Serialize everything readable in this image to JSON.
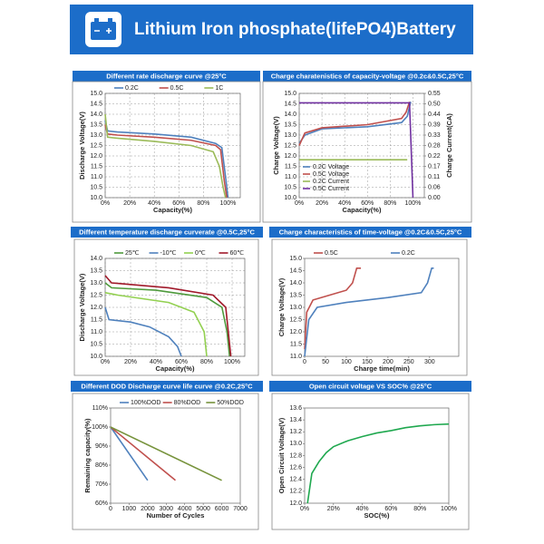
{
  "title": "Lithium Iron phosphate(lifePO4)Battery",
  "chart_data": [
    {
      "type": "line",
      "title": "Different rate discharge curve @25°C",
      "xlabel": "Capacity(%)",
      "ylabel": "Discharge Voltage(V)",
      "xlim": [
        0,
        110
      ],
      "ylim": [
        10,
        15
      ],
      "xticks": [
        {
          "value": 0,
          "label": "0%"
        },
        {
          "value": 20,
          "label": "20%"
        },
        {
          "value": 40,
          "label": "40%"
        },
        {
          "value": 60,
          "label": "60%"
        },
        {
          "value": 80,
          "label": "80%"
        },
        {
          "value": 100,
          "label": "100%"
        }
      ],
      "yticks": [
        {
          "value": 10,
          "label": "10.0"
        },
        10.5,
        {
          "value": 11,
          "label": "11.0"
        },
        11.5,
        {
          "value": 12,
          "label": "12.0"
        },
        12.5,
        {
          "value": 13,
          "label": "13.0"
        },
        13.5,
        {
          "value": 14,
          "label": "14.0"
        },
        14.5,
        {
          "value": 15,
          "label": "15.0"
        }
      ],
      "grid": true,
      "legend": "top",
      "series": [
        {
          "name": "0.2C",
          "color": "#4f81bd",
          "x": [
            0,
            2,
            10,
            40,
            70,
            90,
            95,
            98,
            100
          ],
          "values": [
            13.7,
            13.2,
            13.15,
            13.05,
            12.9,
            12.6,
            12.4,
            11,
            10
          ]
        },
        {
          "name": "0.5C",
          "color": "#c0504d",
          "x": [
            0,
            2,
            10,
            40,
            70,
            90,
            94,
            97,
            99
          ],
          "values": [
            13.5,
            13.05,
            13,
            12.9,
            12.75,
            12.5,
            12.3,
            10.8,
            10
          ]
        },
        {
          "name": "1C",
          "color": "#9bbb59",
          "x": [
            0,
            2,
            10,
            40,
            70,
            88,
            93,
            96,
            98
          ],
          "values": [
            14,
            12.9,
            12.85,
            12.7,
            12.5,
            12.2,
            11.5,
            10.5,
            10
          ]
        }
      ]
    },
    {
      "type": "line",
      "title": "Charge charatenistics of capacity-voltage @0.2c&0.5C,25°C",
      "xlabel": "Capacity(%)",
      "ylabel": "Charge Voltage(V)",
      "y2label": "Charge Current(CA)",
      "xlim": [
        0,
        110
      ],
      "ylim": [
        10,
        15
      ],
      "y2lim": [
        0,
        0.55
      ],
      "xticks": [
        {
          "value": 0,
          "label": "0%"
        },
        {
          "value": 20,
          "label": "20%"
        },
        {
          "value": 40,
          "label": "40%"
        },
        {
          "value": 60,
          "label": "60%"
        },
        {
          "value": 80,
          "label": "80%"
        },
        {
          "value": 100,
          "label": "100%"
        }
      ],
      "yticks": [
        {
          "value": 10,
          "label": "10.0"
        },
        10.5,
        {
          "value": 11,
          "label": "11.0"
        },
        11.5,
        {
          "value": 12,
          "label": "12.0"
        },
        12.5,
        {
          "value": 13,
          "label": "13.0"
        },
        13.5,
        {
          "value": 14,
          "label": "14.0"
        },
        14.5,
        {
          "value": 15,
          "label": "15.0"
        }
      ],
      "y2ticks": [
        {
          "value": 0,
          "label": "0.00"
        },
        {
          "value": 0.055,
          "label": "0.06"
        },
        0.11,
        {
          "value": 0.165,
          "label": "0.17"
        },
        0.22,
        {
          "value": 0.275,
          "label": "0.28"
        },
        0.33,
        {
          "value": 0.385,
          "label": "0.39"
        },
        0.44,
        {
          "value": 0.495,
          "label": "0.50"
        },
        0.55
      ],
      "grid": true,
      "legend": "lower left",
      "series": [
        {
          "name": "0.2C Voltage",
          "color": "#4f81bd",
          "x": [
            0,
            5,
            20,
            60,
            90,
            95,
            98
          ],
          "values": [
            12.6,
            13,
            13.3,
            13.4,
            13.6,
            13.9,
            14.6
          ]
        },
        {
          "name": "0.5C Voltage",
          "color": "#c0504d",
          "x": [
            0,
            5,
            20,
            60,
            90,
            94,
            97
          ],
          "values": [
            12.5,
            13.1,
            13.35,
            13.5,
            13.8,
            14.1,
            14.6
          ]
        },
        {
          "name": "0.2C Current",
          "color": "#9bbb59",
          "axis": "y2",
          "x": [
            0,
            95
          ],
          "values": [
            0.2,
            0.2
          ]
        },
        {
          "name": "0.5C Current",
          "color": "#7030a0",
          "axis": "y2",
          "x": [
            0,
            97,
            100
          ],
          "values": [
            0.5,
            0.5,
            0
          ]
        }
      ]
    },
    {
      "type": "line",
      "title": "Different temperature discharge curverate  @0.5C,25°C",
      "xlabel": "Capacity(%)",
      "ylabel": "Discharge Voltage(V)",
      "xlim": [
        0,
        110
      ],
      "ylim": [
        10,
        14
      ],
      "xticks": [
        {
          "value": 0,
          "label": "0%"
        },
        {
          "value": 20,
          "label": "20%"
        },
        {
          "value": 40,
          "label": "40%"
        },
        {
          "value": 60,
          "label": "60%"
        },
        {
          "value": 80,
          "label": "80%"
        },
        {
          "value": 100,
          "label": "100%"
        }
      ],
      "yticks": [
        {
          "value": 10,
          "label": "10.0"
        },
        10.5,
        {
          "value": 11,
          "label": "11.0"
        },
        11.5,
        {
          "value": 12,
          "label": "12.0"
        },
        12.5,
        {
          "value": 13,
          "label": "13.0"
        },
        13.5,
        {
          "value": 14,
          "label": "14.0"
        }
      ],
      "grid": true,
      "legend": "top",
      "series": [
        {
          "name": "25℃",
          "color": "#4e9a3c",
          "x": [
            0,
            5,
            40,
            80,
            92,
            96,
            98
          ],
          "values": [
            13,
            12.8,
            12.7,
            12.4,
            12,
            11,
            10
          ]
        },
        {
          "name": "-10℃",
          "color": "#4f81bd",
          "x": [
            0,
            3,
            20,
            35,
            50,
            57,
            60
          ],
          "values": [
            12,
            11.5,
            11.4,
            11.2,
            10.8,
            10.4,
            10
          ]
        },
        {
          "name": "0℃",
          "color": "#92d050",
          "x": [
            0,
            10,
            50,
            70,
            78,
            80
          ],
          "values": [
            12.6,
            12.5,
            12.2,
            11.8,
            11,
            10
          ]
        },
        {
          "name": "60℃",
          "color": "#a0192a",
          "x": [
            0,
            5,
            50,
            85,
            95,
            99
          ],
          "values": [
            13.3,
            13,
            12.8,
            12.5,
            12,
            10
          ]
        }
      ]
    },
    {
      "type": "line",
      "title": "Charge characteristics of time-voltage @0.2C&0.5C,25°C",
      "xlabel": "Charge time(min)",
      "ylabel": "Charge Voltage(V)",
      "xlim": [
        0,
        370
      ],
      "ylim": [
        11,
        15
      ],
      "xticks": [
        0,
        50,
        100,
        150,
        200,
        250,
        300
      ],
      "yticks": [
        {
          "value": 11,
          "label": "11.0"
        },
        11.5,
        {
          "value": 12,
          "label": "12.0"
        },
        12.5,
        {
          "value": 13,
          "label": "13.0"
        },
        13.5,
        {
          "value": 14,
          "label": "14.0"
        },
        14.5,
        {
          "value": 15,
          "label": "15.0"
        }
      ],
      "grid": false,
      "legend": "top",
      "series": [
        {
          "name": "0.5C",
          "color": "#c0504d",
          "x": [
            0,
            5,
            20,
            60,
            100,
            115,
            125,
            135
          ],
          "values": [
            11.3,
            12.8,
            13.3,
            13.5,
            13.7,
            14,
            14.6,
            14.6
          ]
        },
        {
          "name": "0.2C",
          "color": "#4f81bd",
          "x": [
            0,
            10,
            30,
            100,
            200,
            280,
            295,
            305,
            310
          ],
          "values": [
            11,
            12.5,
            13,
            13.2,
            13.4,
            13.6,
            14,
            14.6,
            14.6
          ]
        }
      ]
    },
    {
      "type": "line",
      "title": "Different DOD Discharge curve life curve  @0.2C,25°C",
      "xlabel": "Number of Cycles",
      "ylabel": "Remaining capacity(%)",
      "xlim": [
        0,
        7000
      ],
      "ylim": [
        60,
        110
      ],
      "xticks": [
        0,
        1000,
        2000,
        3000,
        4000,
        5000,
        6000,
        7000
      ],
      "yticks": [
        {
          "value": 60,
          "label": "60%"
        },
        {
          "value": 70,
          "label": "70%"
        },
        {
          "value": 80,
          "label": "80%"
        },
        {
          "value": 90,
          "label": "90%"
        },
        {
          "value": 100,
          "label": "100%"
        },
        {
          "value": 110,
          "label": "110%"
        }
      ],
      "grid": false,
      "legend": "top",
      "series": [
        {
          "name": "100%DOD",
          "color": "#4f81bd",
          "x": [
            0,
            2000
          ],
          "values": [
            100,
            72
          ]
        },
        {
          "name": "80%DOD",
          "color": "#c0504d",
          "x": [
            0,
            3500
          ],
          "values": [
            100,
            72
          ]
        },
        {
          "name": "50%DOD",
          "color": "#77933c",
          "x": [
            0,
            6000
          ],
          "values": [
            100,
            72
          ]
        }
      ]
    },
    {
      "type": "line",
      "title": "Open circuit voltage VS SOC% @25°C",
      "xlabel": "SOC(%)",
      "ylabel": "Open Circuit Voltage(V)",
      "xlim": [
        0,
        100
      ],
      "ylim": [
        12,
        13.6
      ],
      "xticks": [
        {
          "value": 0,
          "label": "0%"
        },
        {
          "value": 20,
          "label": "20%"
        },
        {
          "value": 40,
          "label": "40%"
        },
        {
          "value": 60,
          "label": "60%"
        },
        {
          "value": 80,
          "label": "80%"
        },
        {
          "value": 100,
          "label": "100%"
        }
      ],
      "yticks": [
        {
          "value": 12,
          "label": "12.0"
        },
        12.2,
        12.4,
        12.6,
        12.8,
        {
          "value": 13,
          "label": "13.0"
        },
        13.2,
        13.4,
        13.6
      ],
      "grid": false,
      "series": [
        {
          "color": "#1fa84f",
          "x": [
            2,
            5,
            10,
            15,
            20,
            30,
            40,
            50,
            60,
            70,
            80,
            90,
            100
          ],
          "values": [
            12,
            12.5,
            12.7,
            12.85,
            12.95,
            13.05,
            13.12,
            13.18,
            13.22,
            13.27,
            13.3,
            13.32,
            13.33
          ]
        }
      ]
    }
  ]
}
